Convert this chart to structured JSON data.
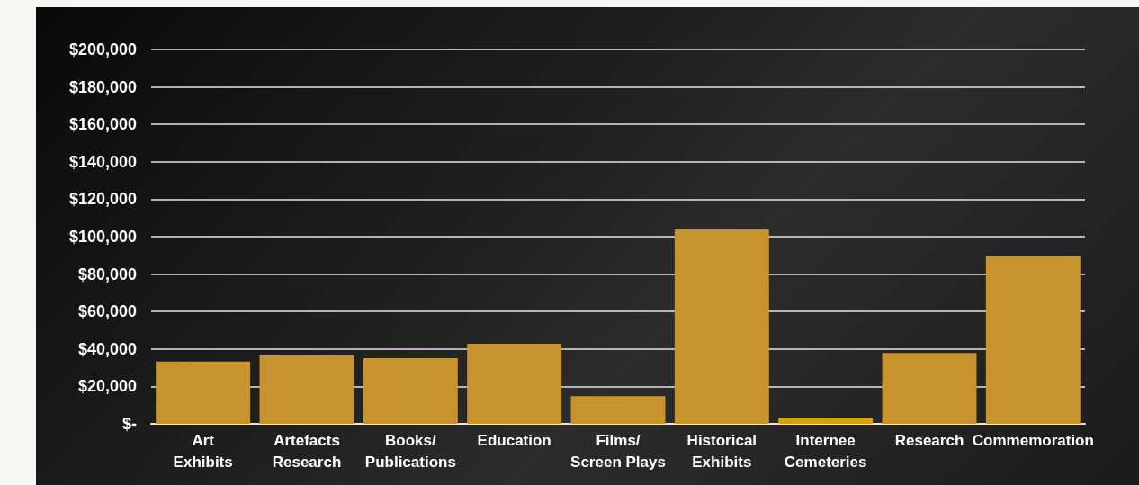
{
  "chart_data": {
    "type": "bar",
    "categories": [
      "Art\nExhibits",
      "Artefacts\nResearch",
      "Books/\nPublications",
      "Education",
      "Films/\nScreen Plays",
      "Historical\nExhibits",
      "Internee\nCemeteries",
      "Research",
      "Commemoration"
    ],
    "values": [
      33300,
      36700,
      35100,
      42800,
      14800,
      104000,
      3400,
      37900,
      89700
    ],
    "colors": [
      "#c8922c",
      "#c8922c",
      "#c8922c",
      "#c8922c",
      "#c8922c",
      "#c8922c",
      "#d4a017",
      "#c8922c",
      "#c8922c"
    ],
    "ylim": [
      0,
      200000
    ],
    "yticks": [
      {
        "value": 0,
        "label": "$-"
      },
      {
        "value": 20000,
        "label": "$20,000"
      },
      {
        "value": 40000,
        "label": "$40,000"
      },
      {
        "value": 60000,
        "label": "$60,000"
      },
      {
        "value": 80000,
        "label": "$80,000"
      },
      {
        "value": 100000,
        "label": "$100,000"
      },
      {
        "value": 120000,
        "label": "$120,000"
      },
      {
        "value": 140000,
        "label": "$140,000"
      },
      {
        "value": 160000,
        "label": "$160,000"
      },
      {
        "value": 180000,
        "label": "$180,000"
      },
      {
        "value": 200000,
        "label": "$200,000"
      }
    ],
    "grid": "y"
  }
}
